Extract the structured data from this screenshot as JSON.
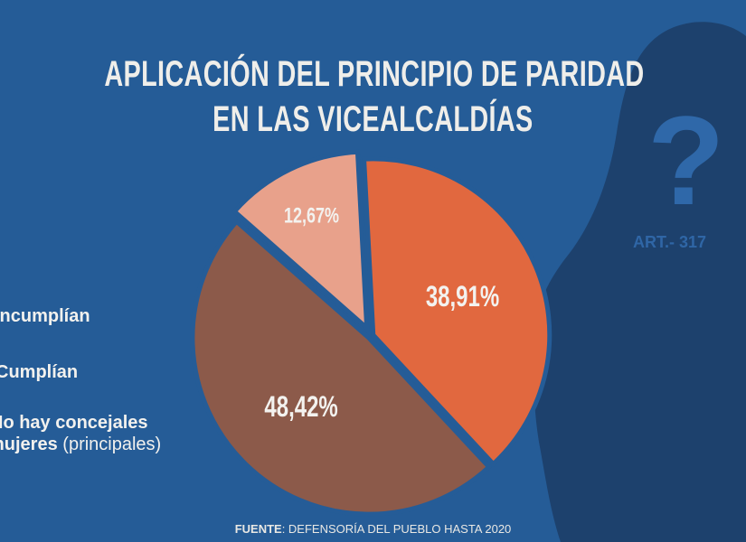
{
  "title": {
    "line1": "APLICACIÓN DEL PRINCIPIO DE PARIDAD",
    "line2": "EN LAS VICEALCALDÍAS"
  },
  "legend": {
    "item1": "Incumplían",
    "item2": "Cumplían",
    "item3_line1": "No hay concejales",
    "item3_line2_bold": "mujeres",
    "item3_line2_light": "(principales)"
  },
  "decoration": {
    "question_mark": "?",
    "article": "ART.- 317"
  },
  "source": {
    "label": "FUENTE",
    "text": ": DEFENSORÍA DEL PUEBLO HASTA 2020"
  },
  "chart_data": {
    "type": "pie",
    "title": "APLICACIÓN DEL PRINCIPIO DE PARIDAD EN LAS VICEALCALDÍAS",
    "slices": [
      {
        "label": "38,91%",
        "value": 38.91,
        "color": "#e1683f"
      },
      {
        "label": "48,42%",
        "value": 48.42,
        "color": "#8c5a4a"
      },
      {
        "label": "12,67%",
        "value": 12.67,
        "color": "#e8a18b"
      }
    ],
    "start_angle_deg": -3
  },
  "colors": {
    "background": "#255c97",
    "silhouette": "#1c3f6b",
    "text": "#efeeea"
  }
}
